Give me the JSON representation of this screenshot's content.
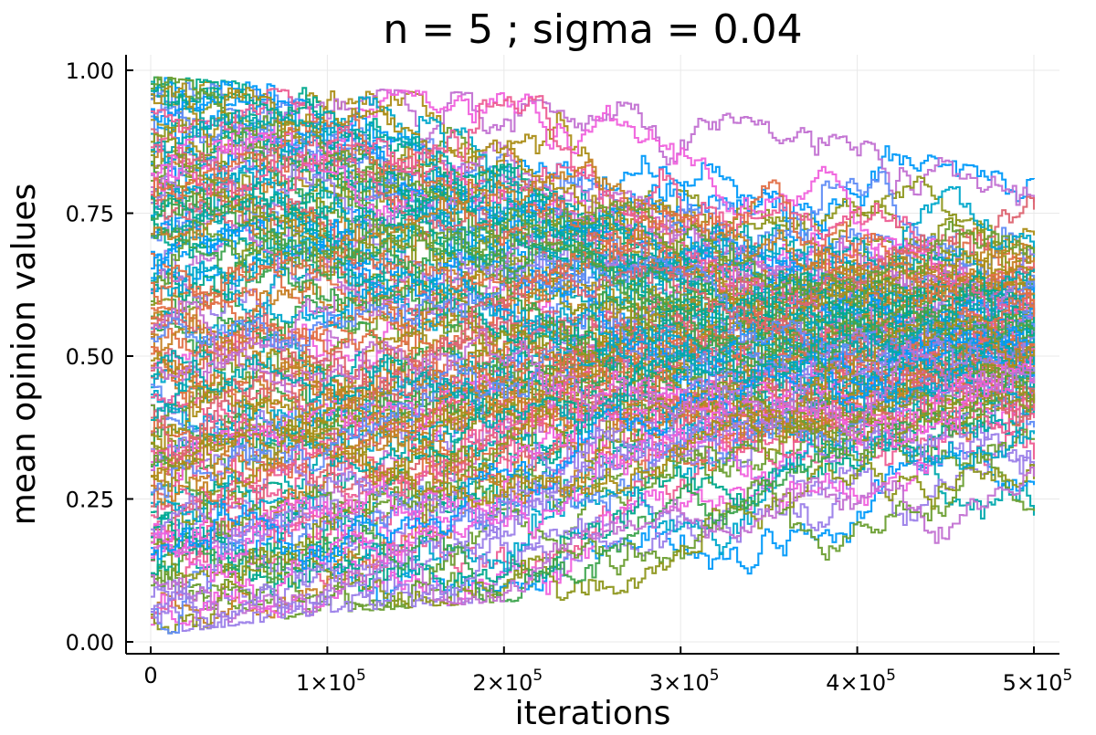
{
  "chart_data": {
    "type": "line",
    "title": "n = 5 ; sigma = 0.04",
    "xlabel": "iterations",
    "ylabel": "mean opinion values",
    "xlim": [
      0,
      500000
    ],
    "ylim": [
      0.0,
      1.0
    ],
    "x_ticks": [
      {
        "value": 0,
        "label": "0"
      },
      {
        "value": 100000,
        "label": "1×10",
        "exp": "5"
      },
      {
        "value": 200000,
        "label": "2×10",
        "exp": "5"
      },
      {
        "value": 300000,
        "label": "3×10",
        "exp": "5"
      },
      {
        "value": 400000,
        "label": "4×10",
        "exp": "5"
      },
      {
        "value": 500000,
        "label": "5×10",
        "exp": "5"
      }
    ],
    "y_ticks": [
      {
        "value": 0.0,
        "label": "0.00"
      },
      {
        "value": 0.25,
        "label": "0.25"
      },
      {
        "value": 0.5,
        "label": "0.50"
      },
      {
        "value": 0.75,
        "label": "0.75"
      },
      {
        "value": 1.0,
        "label": "1.00"
      }
    ],
    "grid": true,
    "legend": "none",
    "palette": [
      "#009AFA",
      "#E26F46",
      "#3DA44E",
      "#C271D2",
      "#AC8E18",
      "#00A9AD",
      "#ED5E93",
      "#C68225",
      "#00A98D",
      "#8E971E",
      "#00A8CB",
      "#9B7FE9",
      "#618DF6",
      "#F061DD",
      "#DD6471",
      "#6C9F33"
    ],
    "series_summary": [
      {
        "x": 0,
        "ymin": 0.01,
        "ymax": 0.99
      },
      {
        "x": 100000,
        "ymin": 0.05,
        "ymax": 0.97
      },
      {
        "x": 200000,
        "ymin": 0.07,
        "ymax": 0.96
      },
      {
        "x": 300000,
        "ymin": 0.08,
        "ymax": 0.94
      },
      {
        "x": 400000,
        "ymin": 0.12,
        "ymax": 0.88
      },
      {
        "x": 500000,
        "ymin": 0.16,
        "ymax": 0.81
      }
    ],
    "cluster": {
      "center": 0.5,
      "halfwidth_end": 0.12
    },
    "outliers_at_end": [
      0.81,
      0.79,
      0.66,
      0.35,
      0.29,
      0.17
    ]
  }
}
